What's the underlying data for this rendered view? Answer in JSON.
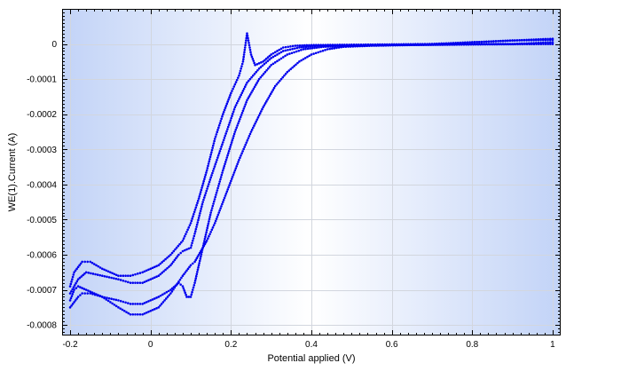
{
  "chart_data": {
    "type": "scatter",
    "xlabel": "Potential applied (V)",
    "ylabel": "WE(1).Current (A)",
    "xlim": [
      -0.22,
      1.02
    ],
    "ylim": [
      -0.00083,
      0.0001
    ],
    "x_ticks": [
      -0.2,
      0,
      0.2,
      0.4,
      0.6,
      0.8,
      1
    ],
    "x_tick_labels": [
      "-0.2",
      "0",
      "0.2",
      "0.4",
      "0.6",
      "0.8",
      "1"
    ],
    "y_ticks": [
      0,
      -0.0001,
      -0.0002,
      -0.0003,
      -0.0004,
      -0.0005,
      -0.0006,
      -0.0007,
      -0.0008
    ],
    "y_tick_labels": [
      "0",
      "-0.0001",
      "-0.0002",
      "-0.0003",
      "-0.0004",
      "-0.0005",
      "-0.0006",
      "-0.0007",
      "-0.0008"
    ],
    "grid": true,
    "marker_color": "#0000ee",
    "background_gradient": [
      "#c2d3f7",
      "#ffffff",
      "#c2d3f7"
    ],
    "series": [
      {
        "points": [
          [
            -0.2,
            -0.00069
          ],
          [
            -0.19,
            -0.00065
          ],
          [
            -0.17,
            -0.00062
          ],
          [
            -0.15,
            -0.00062
          ],
          [
            -0.12,
            -0.00064
          ],
          [
            -0.08,
            -0.00066
          ],
          [
            -0.05,
            -0.00066
          ],
          [
            -0.02,
            -0.00065
          ],
          [
            0.02,
            -0.00063
          ],
          [
            0.05,
            -0.0006
          ],
          [
            0.08,
            -0.00056
          ],
          [
            0.1,
            -0.00051
          ],
          [
            0.12,
            -0.00044
          ],
          [
            0.14,
            -0.00036
          ],
          [
            0.16,
            -0.00027
          ],
          [
            0.18,
            -0.0002
          ],
          [
            0.2,
            -0.00014
          ],
          [
            0.22,
            -9e-05
          ],
          [
            0.23,
            -5e-05
          ],
          [
            0.24,
            3e-05
          ],
          [
            0.25,
            -3e-05
          ],
          [
            0.26,
            -6e-05
          ],
          [
            0.28,
            -5e-05
          ],
          [
            0.3,
            -3e-05
          ],
          [
            0.33,
            -1e-05
          ],
          [
            0.36,
            -5e-06
          ],
          [
            0.4,
            -3e-06
          ],
          [
            0.5,
            -2e-06
          ],
          [
            0.6,
            -1e-06
          ],
          [
            0.7,
            0.0
          ],
          [
            0.8,
            5e-06
          ],
          [
            0.9,
            1e-05
          ],
          [
            1.0,
            1.5e-05
          ]
        ]
      },
      {
        "points": [
          [
            -0.2,
            -0.00071
          ],
          [
            -0.18,
            -0.00067
          ],
          [
            -0.16,
            -0.00065
          ],
          [
            -0.12,
            -0.00066
          ],
          [
            -0.08,
            -0.00067
          ],
          [
            -0.05,
            -0.00068
          ],
          [
            -0.02,
            -0.00068
          ],
          [
            0.02,
            -0.00066
          ],
          [
            0.05,
            -0.00063
          ],
          [
            0.07,
            -0.0006
          ],
          [
            0.08,
            -0.00059
          ],
          [
            0.1,
            -0.00058
          ],
          [
            0.11,
            -0.00054
          ],
          [
            0.13,
            -0.00045
          ],
          [
            0.15,
            -0.00038
          ],
          [
            0.18,
            -0.00028
          ],
          [
            0.21,
            -0.00018
          ],
          [
            0.24,
            -0.00011
          ],
          [
            0.27,
            -7e-05
          ],
          [
            0.3,
            -4e-05
          ],
          [
            0.33,
            -2e-05
          ],
          [
            0.37,
            -1e-05
          ],
          [
            0.42,
            -5e-06
          ],
          [
            0.5,
            -3e-06
          ],
          [
            0.6,
            -2e-06
          ],
          [
            0.7,
            0.0
          ],
          [
            0.8,
            5e-06
          ],
          [
            0.9,
            1e-05
          ],
          [
            1.0,
            1.2e-05
          ]
        ]
      },
      {
        "points": [
          [
            -0.2,
            -0.00075
          ],
          [
            -0.18,
            -0.00072
          ],
          [
            -0.17,
            -0.00071
          ],
          [
            -0.15,
            -0.00071
          ],
          [
            -0.12,
            -0.00072
          ],
          [
            -0.08,
            -0.00073
          ],
          [
            -0.05,
            -0.00074
          ],
          [
            -0.02,
            -0.00074
          ],
          [
            0.02,
            -0.00072
          ],
          [
            0.05,
            -0.0007
          ],
          [
            0.07,
            -0.00068
          ],
          [
            0.08,
            -0.00069
          ],
          [
            0.09,
            -0.00072
          ],
          [
            0.1,
            -0.00072
          ],
          [
            0.11,
            -0.00068
          ],
          [
            0.13,
            -0.00058
          ],
          [
            0.15,
            -0.00048
          ],
          [
            0.18,
            -0.00036
          ],
          [
            0.21,
            -0.00025
          ],
          [
            0.24,
            -0.00016
          ],
          [
            0.27,
            -0.0001
          ],
          [
            0.3,
            -6e-05
          ],
          [
            0.34,
            -3e-05
          ],
          [
            0.38,
            -1.5e-05
          ],
          [
            0.43,
            -8e-06
          ],
          [
            0.5,
            -5e-06
          ],
          [
            0.6,
            -3e-06
          ],
          [
            0.7,
            -2e-06
          ],
          [
            0.8,
            0.0
          ],
          [
            0.9,
            0.0
          ],
          [
            1.0,
            5e-06
          ]
        ]
      },
      {
        "points": [
          [
            -0.2,
            -0.00073
          ],
          [
            -0.19,
            -0.0007
          ],
          [
            -0.18,
            -0.00069
          ],
          [
            -0.16,
            -0.0007
          ],
          [
            -0.12,
            -0.00072
          ],
          [
            -0.08,
            -0.00075
          ],
          [
            -0.05,
            -0.00077
          ],
          [
            -0.02,
            -0.00077
          ],
          [
            0.02,
            -0.00075
          ],
          [
            0.05,
            -0.00071
          ],
          [
            0.08,
            -0.00066
          ],
          [
            0.1,
            -0.00063
          ],
          [
            0.11,
            -0.00062
          ],
          [
            0.12,
            -0.0006
          ],
          [
            0.13,
            -0.00058
          ],
          [
            0.14,
            -0.00056
          ],
          [
            0.16,
            -0.00051
          ],
          [
            0.19,
            -0.00042
          ],
          [
            0.22,
            -0.00033
          ],
          [
            0.25,
            -0.00025
          ],
          [
            0.28,
            -0.00018
          ],
          [
            0.31,
            -0.00012
          ],
          [
            0.34,
            -8e-05
          ],
          [
            0.37,
            -5e-05
          ],
          [
            0.4,
            -3e-05
          ],
          [
            0.44,
            -1.5e-05
          ],
          [
            0.48,
            -8e-06
          ],
          [
            0.55,
            -5e-06
          ],
          [
            0.65,
            -3e-06
          ],
          [
            0.75,
            -2e-06
          ],
          [
            0.85,
            -1e-06
          ],
          [
            1.0,
            0.0
          ]
        ]
      }
    ]
  }
}
